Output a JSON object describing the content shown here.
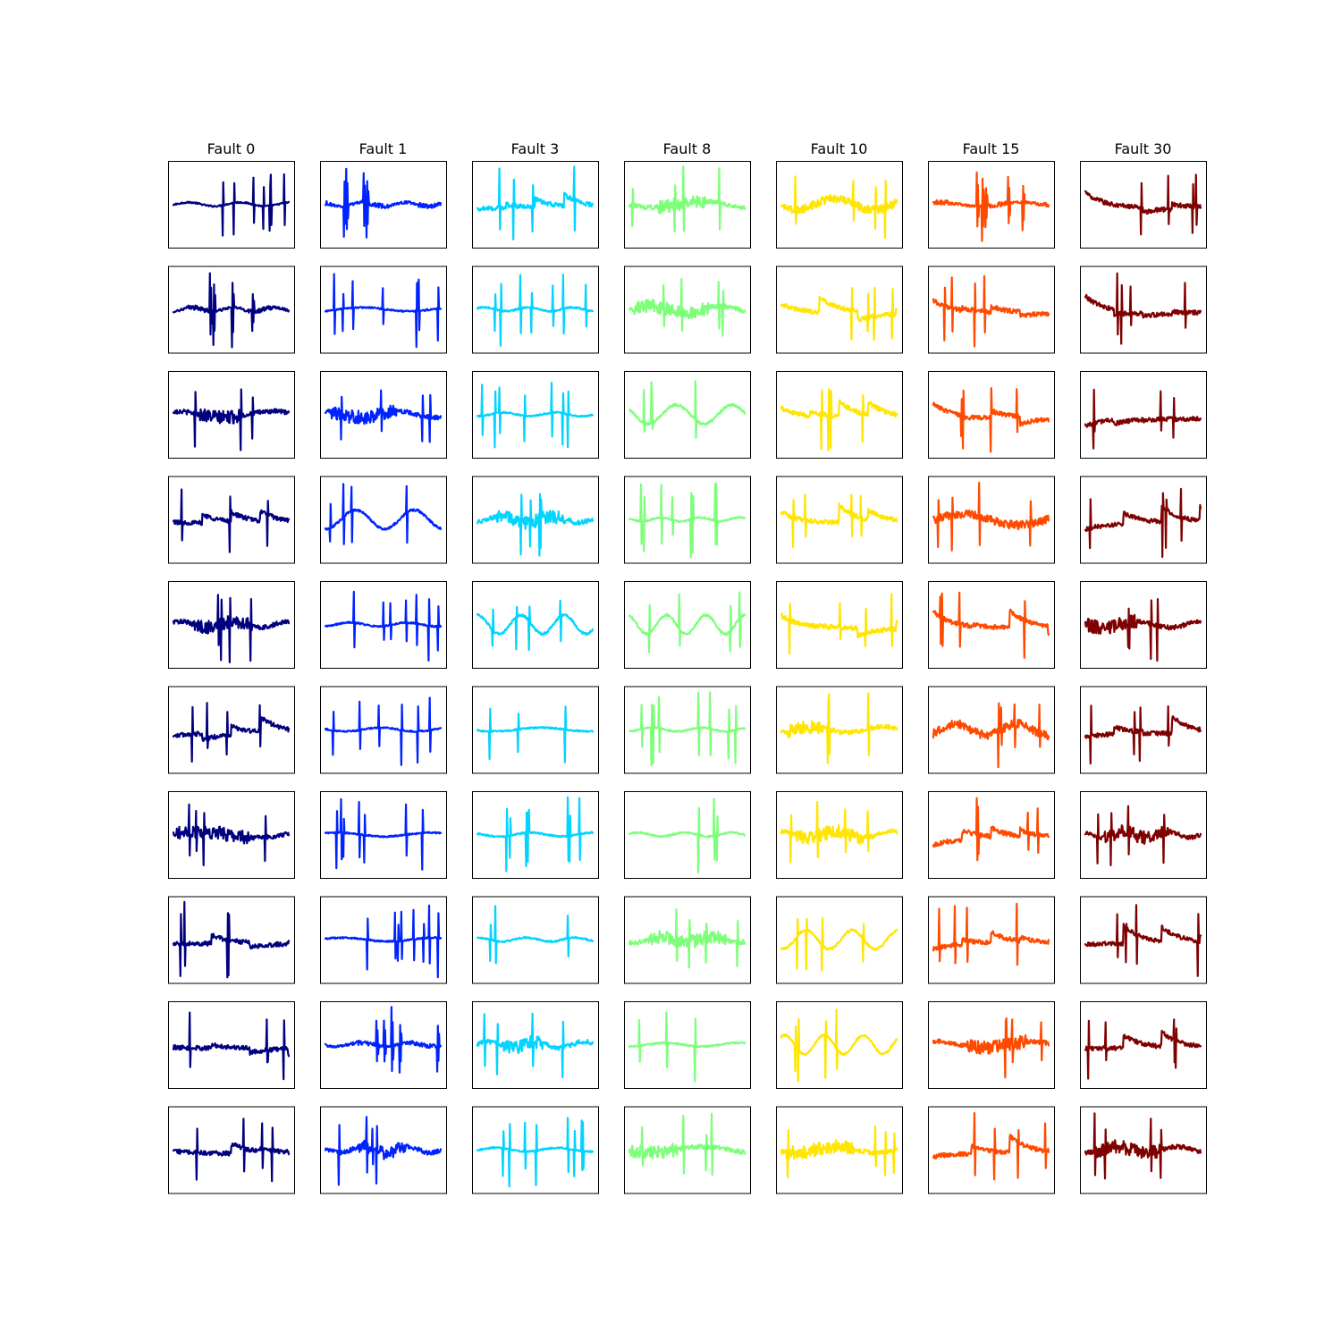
{
  "chart_data": {
    "type": "line",
    "layout": "grid of small multiples, 10 rows x 7 columns",
    "axes_visible": false,
    "grid": false,
    "legend": "none",
    "columns": [
      {
        "title": "Fault 0",
        "color": "#00007f"
      },
      {
        "title": "Fault 1",
        "color": "#0022ff"
      },
      {
        "title": "Fault 3",
        "color": "#00d4ff"
      },
      {
        "title": "Fault 8",
        "color": "#7dff7a"
      },
      {
        "title": "Fault 10",
        "color": "#ffe500"
      },
      {
        "title": "Fault 15",
        "color": "#ff4a00"
      },
      {
        "title": "Fault 30",
        "color": "#7f0000"
      }
    ],
    "rows": 10,
    "sample_length": 200,
    "ylim": [
      -1,
      1
    ],
    "waveforms": [
      [
        "spiky",
        "bursts",
        "rampy",
        "noisyblock",
        "mixed",
        "bursts",
        "rampy"
      ],
      [
        "bursts",
        "spiky",
        "spiky",
        "noisyblock",
        "rampy",
        "rampy",
        "rampy"
      ],
      [
        "noisyblock",
        "noisyblock",
        "spiky",
        "wavy",
        "rampy",
        "rampy",
        "rampy"
      ],
      [
        "rampy",
        "wavy",
        "noisyblock",
        "spiky",
        "rampy",
        "mixed",
        "rampy"
      ],
      [
        "noisyblock",
        "spiky",
        "wavy",
        "wavy",
        "rampy",
        "rampy",
        "noisyblock"
      ],
      [
        "rampy",
        "spiky",
        "sparse",
        "spiky",
        "noisyblock",
        "mixed",
        "rampy"
      ],
      [
        "noisyblock",
        "spiky",
        "spiky",
        "sparse",
        "noisyblock",
        "rampy",
        "noisyblock"
      ],
      [
        "rampy",
        "spiky",
        "sparse",
        "noisyblock",
        "wavy",
        "rampy",
        "rampy"
      ],
      [
        "rampy",
        "bursts",
        "noisyblock",
        "sparse",
        "wavy",
        "noisyblock",
        "rampy"
      ],
      [
        "rampy",
        "noisyblock",
        "spiky",
        "noisyblock",
        "noisyblock",
        "rampy",
        "noisyblock"
      ]
    ]
  }
}
